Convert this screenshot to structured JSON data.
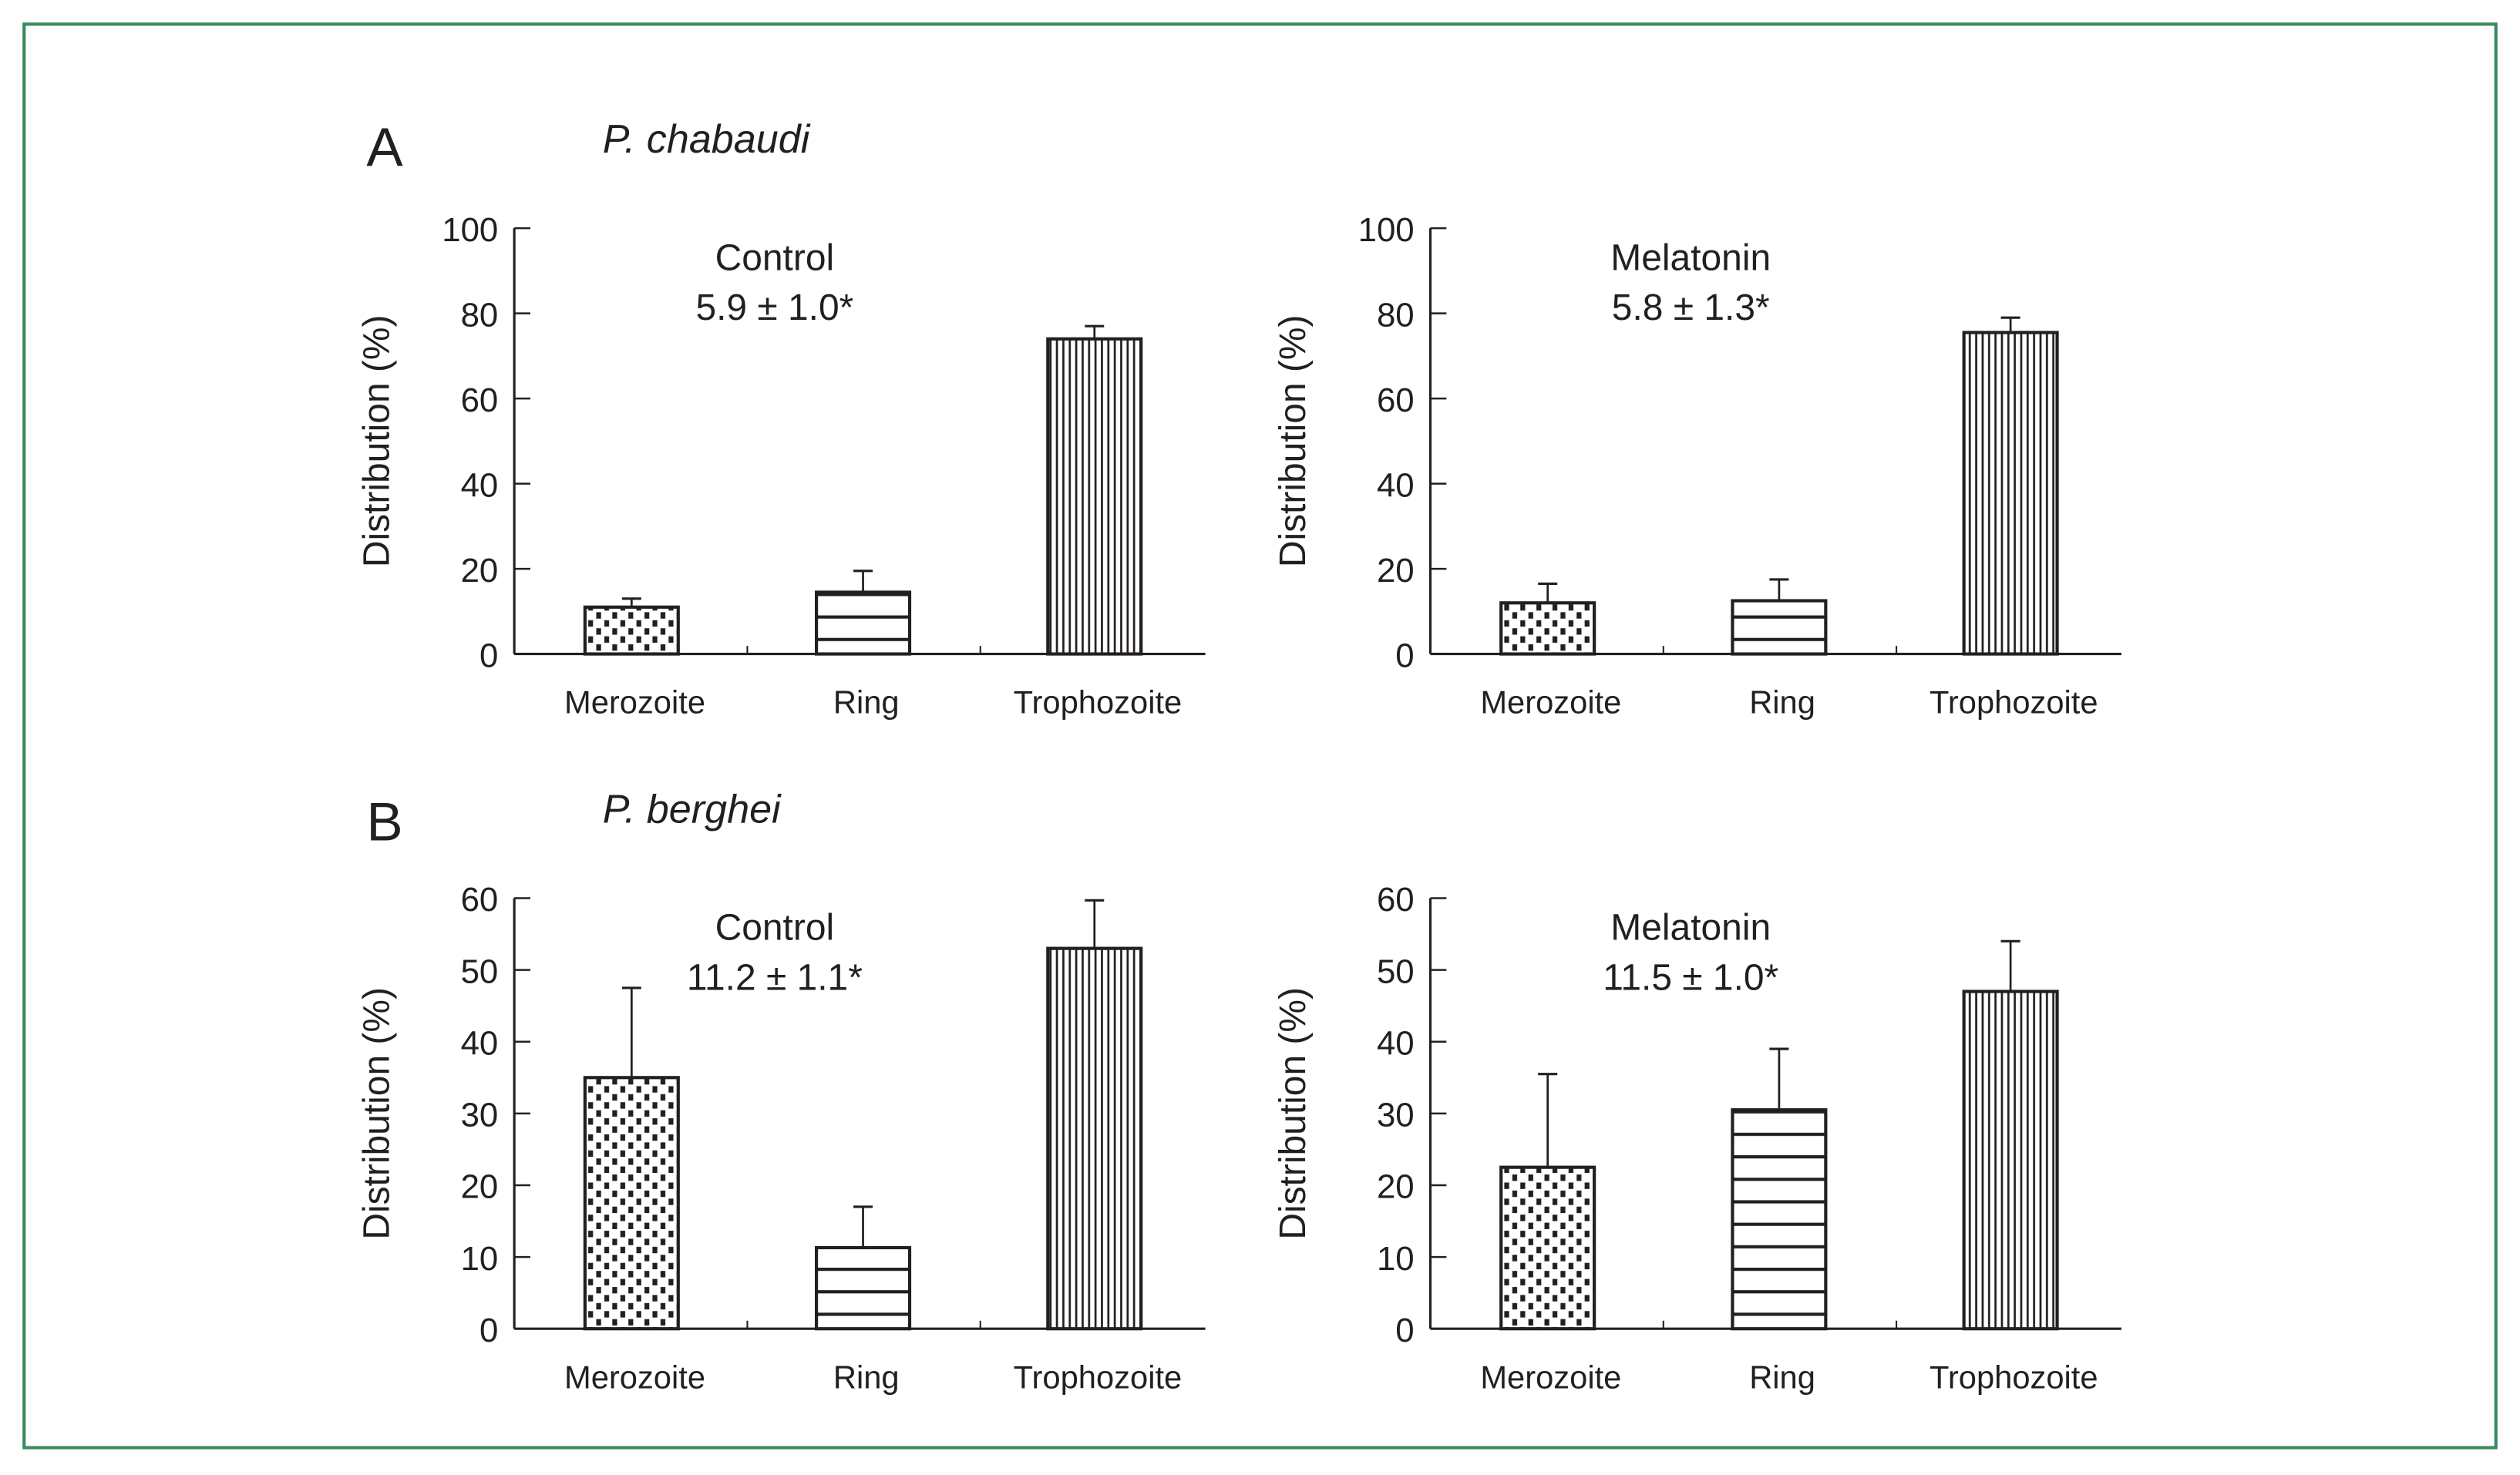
{
  "colors": {
    "frame": "#3b8b5e",
    "ink": "#231f20"
  },
  "sections": [
    {
      "letter": "A",
      "species": "P. chabaudi"
    },
    {
      "letter": "B",
      "species": "P. berghei"
    }
  ],
  "chart_data": [
    {
      "type": "bar",
      "panel": "A",
      "annotation": "Control",
      "annotation_value": "5.9 ± 1.0*",
      "ylabel": "Distribution (%)",
      "ylim": [
        0,
        100
      ],
      "yticks": [
        0,
        20,
        40,
        60,
        80,
        100
      ],
      "categories": [
        "Merozoite",
        "Ring",
        "Trophozoite"
      ],
      "patterns": [
        "dots",
        "horizontal",
        "vertical"
      ],
      "values": [
        11,
        14.5,
        74
      ],
      "error_upper": [
        13,
        19.5,
        77
      ]
    },
    {
      "type": "bar",
      "panel": "A",
      "annotation": "Melatonin",
      "annotation_value": "5.8 ± 1.3*",
      "ylabel": "Distribution (%)",
      "ylim": [
        0,
        100
      ],
      "yticks": [
        0,
        20,
        40,
        60,
        80,
        100
      ],
      "categories": [
        "Merozoite",
        "Ring",
        "Trophozoite"
      ],
      "patterns": [
        "dots",
        "horizontal",
        "vertical"
      ],
      "values": [
        12,
        12.5,
        75.5
      ],
      "error_upper": [
        16.5,
        17.5,
        79
      ]
    },
    {
      "type": "bar",
      "panel": "B",
      "annotation": "Control",
      "annotation_value": "11.2 ± 1.1*",
      "ylabel": "Distribution (%)",
      "ylim": [
        0,
        60
      ],
      "yticks": [
        0,
        10,
        20,
        30,
        40,
        50,
        60
      ],
      "categories": [
        "Merozoite",
        "Ring",
        "Trophozoite"
      ],
      "patterns": [
        "dots",
        "horizontal",
        "vertical"
      ],
      "values": [
        35,
        11.3,
        53
      ],
      "error_upper": [
        47.5,
        17,
        59.7
      ]
    },
    {
      "type": "bar",
      "panel": "B",
      "annotation": "Melatonin",
      "annotation_value": "11.5 ± 1.0*",
      "ylabel": "Distribution (%)",
      "ylim": [
        0,
        60
      ],
      "yticks": [
        0,
        10,
        20,
        30,
        40,
        50,
        60
      ],
      "categories": [
        "Merozoite",
        "Ring",
        "Trophozoite"
      ],
      "patterns": [
        "dots",
        "horizontal",
        "vertical"
      ],
      "values": [
        22.5,
        30.5,
        47
      ],
      "error_upper": [
        35.5,
        39,
        54
      ]
    }
  ]
}
